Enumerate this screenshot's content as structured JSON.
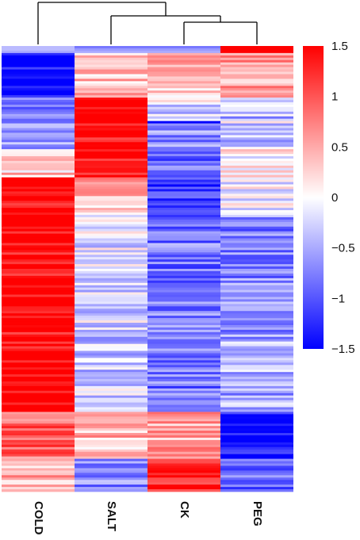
{
  "chart_data": {
    "type": "heatmap",
    "columns": [
      "COLD",
      "SALT",
      "CK",
      "PEG"
    ],
    "row_count": 190,
    "column_dendrogram": "((COLD),(SALT,(CK,PEG)))",
    "colorbar": {
      "ticks": [
        "1.5",
        "1",
        "0.5",
        "0",
        "−0.5",
        "−1",
        "−1.5"
      ],
      "tick_values": [
        1.5,
        1,
        0.5,
        0,
        -0.5,
        -1,
        -1.5
      ],
      "range": [
        -1.5,
        1.5
      ],
      "low_color": "#0000ff",
      "mid_color": "#ffffff",
      "high_color": "#ff0000"
    },
    "row_blocks": [
      {
        "rows": 22,
        "COLD": -1.5,
        "SALT": 0.35,
        "CK": 0.4,
        "PEG": 0.6
      },
      {
        "rows": 10,
        "COLD": -0.7,
        "SALT": 1.5,
        "CK": -0.2,
        "PEG": -0.4
      },
      {
        "rows": 12,
        "COLD": -0.5,
        "SALT": 1.5,
        "CK": -0.7,
        "PEG": -0.4
      },
      {
        "rows": 12,
        "COLD": 0.3,
        "SALT": 1.5,
        "CK": -0.9,
        "PEG": 0.0
      },
      {
        "rows": 16,
        "COLD": 1.5,
        "SALT": 0.4,
        "CK": -1.1,
        "PEG": -0.1
      },
      {
        "rows": 50,
        "COLD": 1.5,
        "SALT": -0.2,
        "CK": -0.8,
        "PEG": -0.7
      },
      {
        "rows": 34,
        "COLD": 1.5,
        "SALT": -0.3,
        "CK": -0.8,
        "PEG": -0.5
      },
      {
        "rows": 20,
        "COLD": 0.9,
        "SALT": 0.4,
        "CK": 0.5,
        "PEG": -1.4
      },
      {
        "rows": 14,
        "COLD": 0.5,
        "SALT": -0.7,
        "CK": 1.4,
        "PEG": -0.9
      }
    ],
    "special_rows": [
      {
        "row": 0,
        "COLD": -0.4,
        "SALT": -0.8,
        "CK": -0.8,
        "PEG": 1.5
      },
      {
        "row": 1,
        "COLD": -0.4,
        "SALT": -0.6,
        "CK": -0.6,
        "PEG": 1.5
      },
      {
        "row": 2,
        "COLD": -0.5,
        "SALT": -0.5,
        "CK": -0.5,
        "PEG": 1.5
      },
      {
        "row": 32,
        "COLD": -0.9,
        "SALT": 1.5,
        "CK": -1.5,
        "PEG": 0.2
      }
    ]
  }
}
